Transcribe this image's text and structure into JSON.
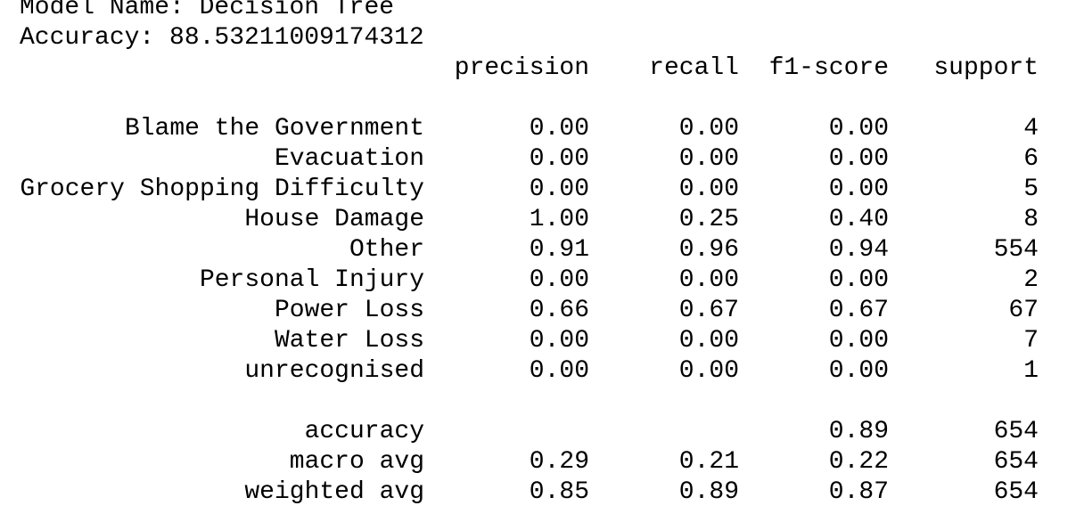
{
  "header": {
    "model_line": "Model Name: Decision Tree",
    "accuracy_line": "Accuracy: 88.53211009174312"
  },
  "report": {
    "columns": [
      "precision",
      "recall",
      "f1-score",
      "support"
    ],
    "rows": [
      {
        "label": "Blame the Government",
        "precision": "0.00",
        "recall": "0.00",
        "f1": "0.00",
        "support": "4"
      },
      {
        "label": "Evacuation",
        "precision": "0.00",
        "recall": "0.00",
        "f1": "0.00",
        "support": "6"
      },
      {
        "label": "Grocery Shopping Difficulty",
        "precision": "0.00",
        "recall": "0.00",
        "f1": "0.00",
        "support": "5"
      },
      {
        "label": "House Damage",
        "precision": "1.00",
        "recall": "0.25",
        "f1": "0.40",
        "support": "8"
      },
      {
        "label": "Other",
        "precision": "0.91",
        "recall": "0.96",
        "f1": "0.94",
        "support": "554"
      },
      {
        "label": "Personal Injury",
        "precision": "0.00",
        "recall": "0.00",
        "f1": "0.00",
        "support": "2"
      },
      {
        "label": "Power Loss",
        "precision": "0.66",
        "recall": "0.67",
        "f1": "0.67",
        "support": "67"
      },
      {
        "label": "Water Loss",
        "precision": "0.00",
        "recall": "0.00",
        "f1": "0.00",
        "support": "7"
      },
      {
        "label": "unrecognised",
        "precision": "0.00",
        "recall": "0.00",
        "f1": "0.00",
        "support": "1"
      }
    ],
    "summary": [
      {
        "label": "accuracy",
        "precision": "",
        "recall": "",
        "f1": "0.89",
        "support": "654"
      },
      {
        "label": "macro avg",
        "precision": "0.29",
        "recall": "0.21",
        "f1": "0.22",
        "support": "654"
      },
      {
        "label": "weighted avg",
        "precision": "0.85",
        "recall": "0.89",
        "f1": "0.87",
        "support": "654"
      }
    ]
  }
}
